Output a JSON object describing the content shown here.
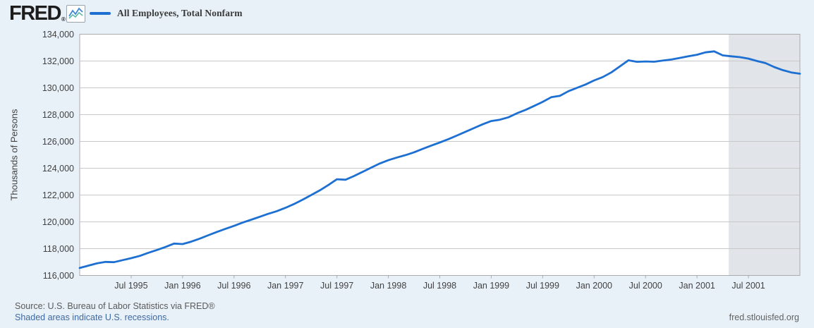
{
  "header": {
    "logo_text": "FRED",
    "registered_mark": "®",
    "graph_icon": "line-chart-icon",
    "legend": {
      "series_label": "All Employees, Total Nonfarm",
      "swatch_color": "#1d70d2"
    }
  },
  "chart_data": {
    "type": "line",
    "title": "All Employees, Total Nonfarm",
    "ylabel": "Thousands of Persons",
    "ylim": [
      116000,
      134000
    ],
    "y_ticks": [
      134000,
      132000,
      130000,
      128000,
      126000,
      124000,
      122000,
      120000,
      118000,
      116000
    ],
    "y_tick_labels": [
      "134,000",
      "132,000",
      "130,000",
      "128,000",
      "126,000",
      "124,000",
      "122,000",
      "120,000",
      "118,000",
      "116,000"
    ],
    "x_start": "Jan 1995",
    "x_end": "Jan 2002",
    "x_tick_labels": [
      "Jul 1995",
      "Jan 1996",
      "Jul 1996",
      "Jan 1997",
      "Jul 1997",
      "Jan 1998",
      "Jul 1998",
      "Jan 1999",
      "Jul 1999",
      "Jan 2000",
      "Jul 2000",
      "Jan 2001",
      "Jul 2001"
    ],
    "x_tick_month_indices": [
      6,
      12,
      18,
      24,
      30,
      36,
      42,
      48,
      54,
      60,
      66,
      72,
      78
    ],
    "grid": "horizontal",
    "series": [
      {
        "name": "All Employees, Total Nonfarm",
        "color": "#1d70d2",
        "frequency": "monthly",
        "values": [
          116560,
          116730,
          116900,
          117010,
          116990,
          117140,
          117290,
          117460,
          117690,
          117900,
          118120,
          118380,
          118340,
          118520,
          118750,
          119000,
          119250,
          119480,
          119700,
          119940,
          120160,
          120380,
          120600,
          120800,
          121050,
          121330,
          121650,
          122000,
          122350,
          122750,
          123180,
          123140,
          123420,
          123730,
          124050,
          124350,
          124600,
          124800,
          124980,
          125190,
          125440,
          125690,
          125920,
          126170,
          126440,
          126720,
          127000,
          127280,
          127520,
          127620,
          127800,
          128100,
          128350,
          128650,
          128950,
          129300,
          129400,
          129750,
          130000,
          130250,
          130550,
          130800,
          131150,
          131600,
          132050,
          131940,
          131970,
          131950,
          132030,
          132110,
          132230,
          132350,
          132470,
          132650,
          132720,
          132420,
          132350,
          132290,
          132180,
          132000,
          131840,
          131550,
          131320,
          131150,
          131050
        ]
      }
    ],
    "recession_shading": {
      "label": "2001 recession",
      "start_month_index": 75.7,
      "end_month_index": 84,
      "color": "#e1e4e8"
    }
  },
  "footer": {
    "source_text": "Source: U.S. Bureau of Labor Statistics via FRED®",
    "recession_note": "Shaded areas indicate U.S. recessions.",
    "site_url": "fred.stlouisfed.org"
  },
  "colors": {
    "page_bg": "#e8f0f8",
    "plot_bg": "#ffffff",
    "gridline": "#c8c8c8",
    "plot_border": "#ababab",
    "axis_text": "#424242",
    "line": "#1d70d2",
    "recession": "#e1e4e8"
  }
}
